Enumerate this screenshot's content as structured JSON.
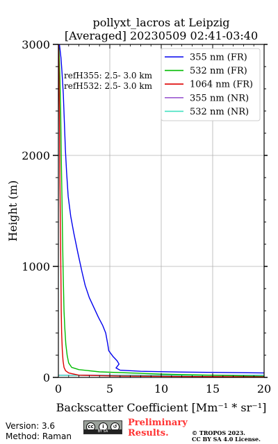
{
  "chart_data": {
    "type": "line",
    "title_line1": "pollyxt_lacros at Leipzig",
    "title_line2": "[Averaged] 20230509 02:41-03:40",
    "xlabel": "Backscatter Coefficient [Mm⁻¹ * sr⁻¹]",
    "ylabel": "Height (m)",
    "xlim": [
      0,
      20
    ],
    "ylim": [
      0,
      3000
    ],
    "xticks": [
      0,
      5,
      10,
      15,
      20
    ],
    "yticks": [
      0,
      1000,
      2000,
      3000
    ],
    "grid": true,
    "legend_position": "top-right",
    "annotations": [
      "refH355:  2.5- 3.0 km",
      "refH532:  2.5- 3.0 km"
    ],
    "series": [
      {
        "name": "355 nm (FR)",
        "color": "#0000ee",
        "points": [
          [
            20,
            40
          ],
          [
            12,
            48
          ],
          [
            8,
            55
          ],
          [
            6.0,
            65
          ],
          [
            5.6,
            85
          ],
          [
            5.9,
            120
          ],
          [
            5.7,
            150
          ],
          [
            5.3,
            190
          ],
          [
            4.9,
            240
          ],
          [
            4.8,
            300
          ],
          [
            4.6,
            400
          ],
          [
            4.3,
            470
          ],
          [
            3.9,
            540
          ],
          [
            3.5,
            620
          ],
          [
            3.0,
            720
          ],
          [
            2.6,
            830
          ],
          [
            2.3,
            950
          ],
          [
            1.9,
            1120
          ],
          [
            1.5,
            1300
          ],
          [
            1.2,
            1450
          ],
          [
            0.95,
            1630
          ],
          [
            0.8,
            1850
          ],
          [
            0.68,
            2050
          ],
          [
            0.58,
            2300
          ],
          [
            0.48,
            2550
          ],
          [
            0.35,
            2750
          ],
          [
            0.25,
            2880
          ],
          [
            0.1,
            3000
          ]
        ]
      },
      {
        "name": "532 nm (FR)",
        "color": "#00bb00",
        "points": [
          [
            20,
            10
          ],
          [
            10,
            30
          ],
          [
            4,
            50
          ],
          [
            2,
            70
          ],
          [
            1.3,
            90
          ],
          [
            1.0,
            130
          ],
          [
            0.85,
            200
          ],
          [
            0.72,
            300
          ],
          [
            0.62,
            450
          ],
          [
            0.55,
            600
          ],
          [
            0.5,
            800
          ],
          [
            0.45,
            1000
          ],
          [
            0.4,
            1300
          ],
          [
            0.35,
            1600
          ],
          [
            0.28,
            2000
          ],
          [
            0.22,
            2400
          ],
          [
            0.15,
            2700
          ],
          [
            0.05,
            3000
          ]
        ]
      },
      {
        "name": "1064 nm (FR)",
        "color": "#dd0000",
        "points": [
          [
            20,
            5
          ],
          [
            6,
            12
          ],
          [
            2,
            20
          ],
          [
            1.0,
            40
          ],
          [
            0.7,
            60
          ],
          [
            0.55,
            90
          ],
          [
            0.45,
            150
          ],
          [
            0.38,
            250
          ],
          [
            0.32,
            400
          ],
          [
            0.28,
            600
          ],
          [
            0.25,
            900
          ],
          [
            0.2,
            1300
          ],
          [
            0.15,
            1800
          ],
          [
            0.1,
            2400
          ],
          [
            0.02,
            3000
          ]
        ]
      },
      {
        "name": "355 nm (NR)",
        "color": "#9b59d0",
        "points": [
          [
            0,
            20
          ],
          [
            20,
            20
          ]
        ]
      },
      {
        "name": "532 nm (NR)",
        "color": "#40e0c0",
        "points": [
          [
            0,
            18
          ],
          [
            20,
            18
          ]
        ]
      }
    ]
  },
  "footer": {
    "version": "Version: 3.6",
    "method": "Method: Raman",
    "license_badge_glyphs": [
      "cc",
      "i",
      "↺"
    ],
    "license_badge_caption": "BY   SA",
    "preliminary_line1": "Preliminary",
    "preliminary_line2": "Results.",
    "copyright_line1": "© TROPOS 2023.",
    "copyright_line2": "CC BY SA 4.0 License."
  }
}
